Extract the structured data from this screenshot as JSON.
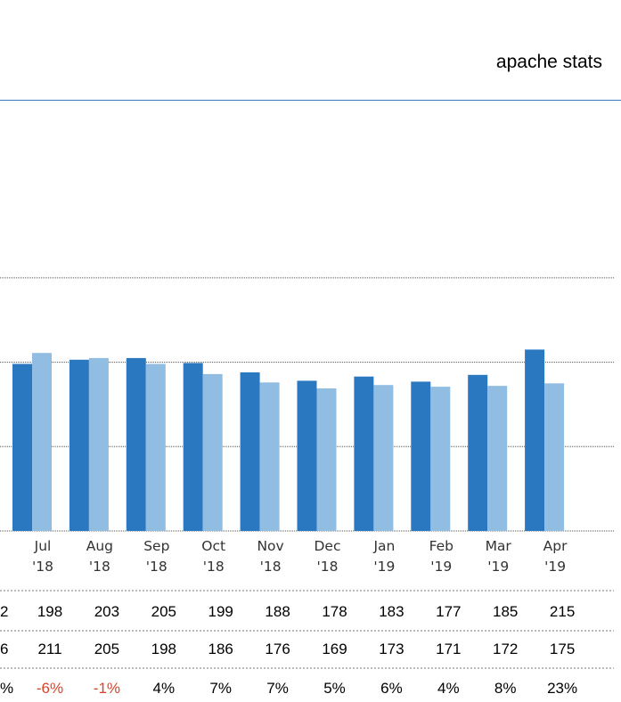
{
  "title": "apache stats",
  "colors": {
    "series_a": "#2a79c0",
    "series_b": "#91bde3",
    "negative": "#d9432a",
    "header_rule": "#3a78c0",
    "grid": "#555555"
  },
  "chart_data": {
    "type": "bar",
    "title": "",
    "xlabel": "",
    "ylabel": "",
    "grid": true,
    "ylim": [
      0,
      300
    ],
    "categories": [
      "Jul '18",
      "Aug '18",
      "Sep '18",
      "Oct '18",
      "Nov '18",
      "Dec '18",
      "Jan '19",
      "Feb '19",
      "Mar '19",
      "Apr '19"
    ],
    "tick_labels": [
      [
        "Jul",
        "'18"
      ],
      [
        "Aug",
        "'18"
      ],
      [
        "Sep",
        "'18"
      ],
      [
        "Oct",
        "'18"
      ],
      [
        "Nov",
        "'18"
      ],
      [
        "Dec",
        "'18"
      ],
      [
        "Jan",
        "'19"
      ],
      [
        "Feb",
        "'19"
      ],
      [
        "Mar",
        "'19"
      ],
      [
        "Apr",
        "'19"
      ]
    ],
    "series": [
      {
        "values": [
          198,
          203,
          205,
          199,
          188,
          178,
          183,
          177,
          185,
          215
        ]
      },
      {
        "values": [
          211,
          205,
          198,
          186,
          176,
          169,
          173,
          171,
          172,
          175
        ]
      }
    ],
    "table": {
      "rows": [
        {
          "prefix": "2",
          "cells": [
            "198",
            "203",
            "205",
            "199",
            "188",
            "178",
            "183",
            "177",
            "185",
            "215"
          ]
        },
        {
          "prefix": "6",
          "cells": [
            "211",
            "205",
            "198",
            "186",
            "176",
            "169",
            "173",
            "171",
            "172",
            "175"
          ]
        },
        {
          "prefix": "%",
          "cells": [
            "-6%",
            "-1%",
            "4%",
            "7%",
            "7%",
            "5%",
            "6%",
            "4%",
            "8%",
            "23%"
          ]
        }
      ]
    }
  }
}
